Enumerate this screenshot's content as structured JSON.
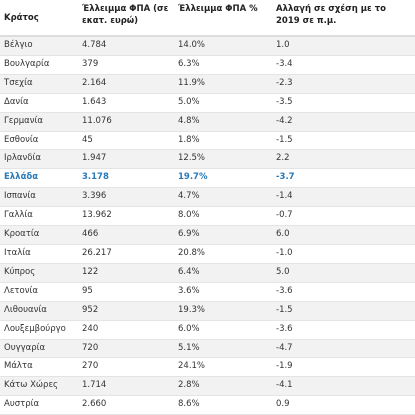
{
  "table": {
    "header": [
      "Κράτος",
      "Έλλειμμα ΦΠΑ (σε εκατ. ευρώ)",
      "Έλλειμμα ΦΠΑ %",
      "Αλλαγή σε σχέση με το 2019 σε π.μ."
    ],
    "rows": [
      [
        "Βέλγιο",
        "4.784",
        "14.0%",
        "1.0"
      ],
      [
        "Βουλγαρία",
        "379",
        "6.3%",
        "-3.4"
      ],
      [
        "Τσεχία",
        "2.164",
        "11.9%",
        "-2.3"
      ],
      [
        "Δανία",
        "1.643",
        "5.0%",
        "-3.5"
      ],
      [
        "Γερμανία",
        "11.076",
        "4.8%",
        "-4.2"
      ],
      [
        "Εσθονία",
        "45",
        "1.8%",
        "-1.5"
      ],
      [
        "Ιρλανδία",
        "1.947",
        "12.5%",
        "2.2"
      ],
      [
        "Ελλάδα",
        "3.178",
        "19.7%",
        "-3.7"
      ],
      [
        "Ισπανία",
        "3.396",
        "4.7%",
        "-1.4"
      ],
      [
        "Γαλλία",
        "13.962",
        "8.0%",
        "-0.7"
      ],
      [
        "Κροατία",
        "466",
        "6.9%",
        "6.0"
      ],
      [
        "Ιταλία",
        "26.217",
        "20.8%",
        "-1.0"
      ],
      [
        "Κύπρος",
        "122",
        "6.4%",
        "5.0"
      ],
      [
        "Λετονία",
        "95",
        "3.6%",
        "-3.6"
      ],
      [
        "Λιθουανία",
        "952",
        "19.3%",
        "-1.5"
      ],
      [
        "Λουξεμβούργο",
        "240",
        "6.0%",
        "-3.6"
      ],
      [
        "Ουγγαρία",
        "720",
        "5.1%",
        "-4.7"
      ],
      [
        "Μάλτα",
        "270",
        "24.1%",
        "-1.9"
      ],
      [
        "Κάτω Χώρες",
        "1.714",
        "2.8%",
        "-4.1"
      ],
      [
        "Αυστρία",
        "2.660",
        "8.6%",
        "0.9"
      ]
    ]
  }
}
